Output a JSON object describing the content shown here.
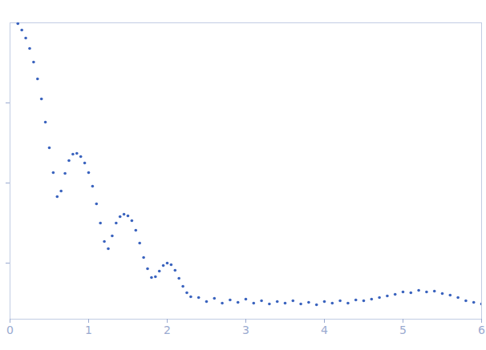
{
  "chart_data": {
    "type": "scatter",
    "color": "#3a63be",
    "marker": "dot",
    "grid": false,
    "tick_labels": "x",
    "xlim": [
      0,
      6
    ],
    "xticks": [
      0,
      1,
      2,
      3,
      4,
      5,
      6
    ],
    "ylim": [
      0.3,
      4.0
    ],
    "yticks": [
      1,
      2,
      3
    ],
    "x": [
      0.1,
      0.15,
      0.2,
      0.25,
      0.3,
      0.35,
      0.4,
      0.45,
      0.5,
      0.55,
      0.6,
      0.65,
      0.7,
      0.75,
      0.8,
      0.85,
      0.9,
      0.95,
      1.0,
      1.05,
      1.1,
      1.15,
      1.2,
      1.25,
      1.3,
      1.35,
      1.4,
      1.45,
      1.5,
      1.55,
      1.6,
      1.65,
      1.7,
      1.75,
      1.8,
      1.85,
      1.9,
      1.95,
      2.0,
      2.05,
      2.1,
      2.15,
      2.2,
      2.25,
      2.3,
      2.4,
      2.5,
      2.6,
      2.7,
      2.8,
      2.9,
      3.0,
      3.1,
      3.2,
      3.3,
      3.4,
      3.5,
      3.6,
      3.7,
      3.8,
      3.9,
      4.0,
      4.1,
      4.2,
      4.3,
      4.4,
      4.5,
      4.6,
      4.7,
      4.8,
      4.9,
      5.0,
      5.1,
      5.2,
      5.3,
      5.4,
      5.5,
      5.6,
      5.7,
      5.8,
      5.9,
      6.0
    ],
    "values": [
      3.99,
      3.91,
      3.81,
      3.68,
      3.51,
      3.3,
      3.05,
      2.76,
      2.44,
      2.13,
      1.83,
      1.9,
      2.12,
      2.28,
      2.36,
      2.37,
      2.33,
      2.25,
      2.13,
      1.96,
      1.74,
      1.5,
      1.27,
      1.18,
      1.34,
      1.5,
      1.58,
      1.61,
      1.59,
      1.53,
      1.41,
      1.25,
      1.07,
      0.93,
      0.82,
      0.83,
      0.9,
      0.97,
      1.0,
      0.98,
      0.91,
      0.81,
      0.71,
      0.63,
      0.58,
      0.57,
      0.52,
      0.56,
      0.5,
      0.54,
      0.51,
      0.55,
      0.5,
      0.53,
      0.49,
      0.52,
      0.5,
      0.53,
      0.49,
      0.51,
      0.48,
      0.52,
      0.5,
      0.53,
      0.5,
      0.54,
      0.53,
      0.55,
      0.57,
      0.59,
      0.61,
      0.64,
      0.63,
      0.66,
      0.64,
      0.65,
      0.62,
      0.6,
      0.57,
      0.53,
      0.51,
      0.49
    ]
  }
}
